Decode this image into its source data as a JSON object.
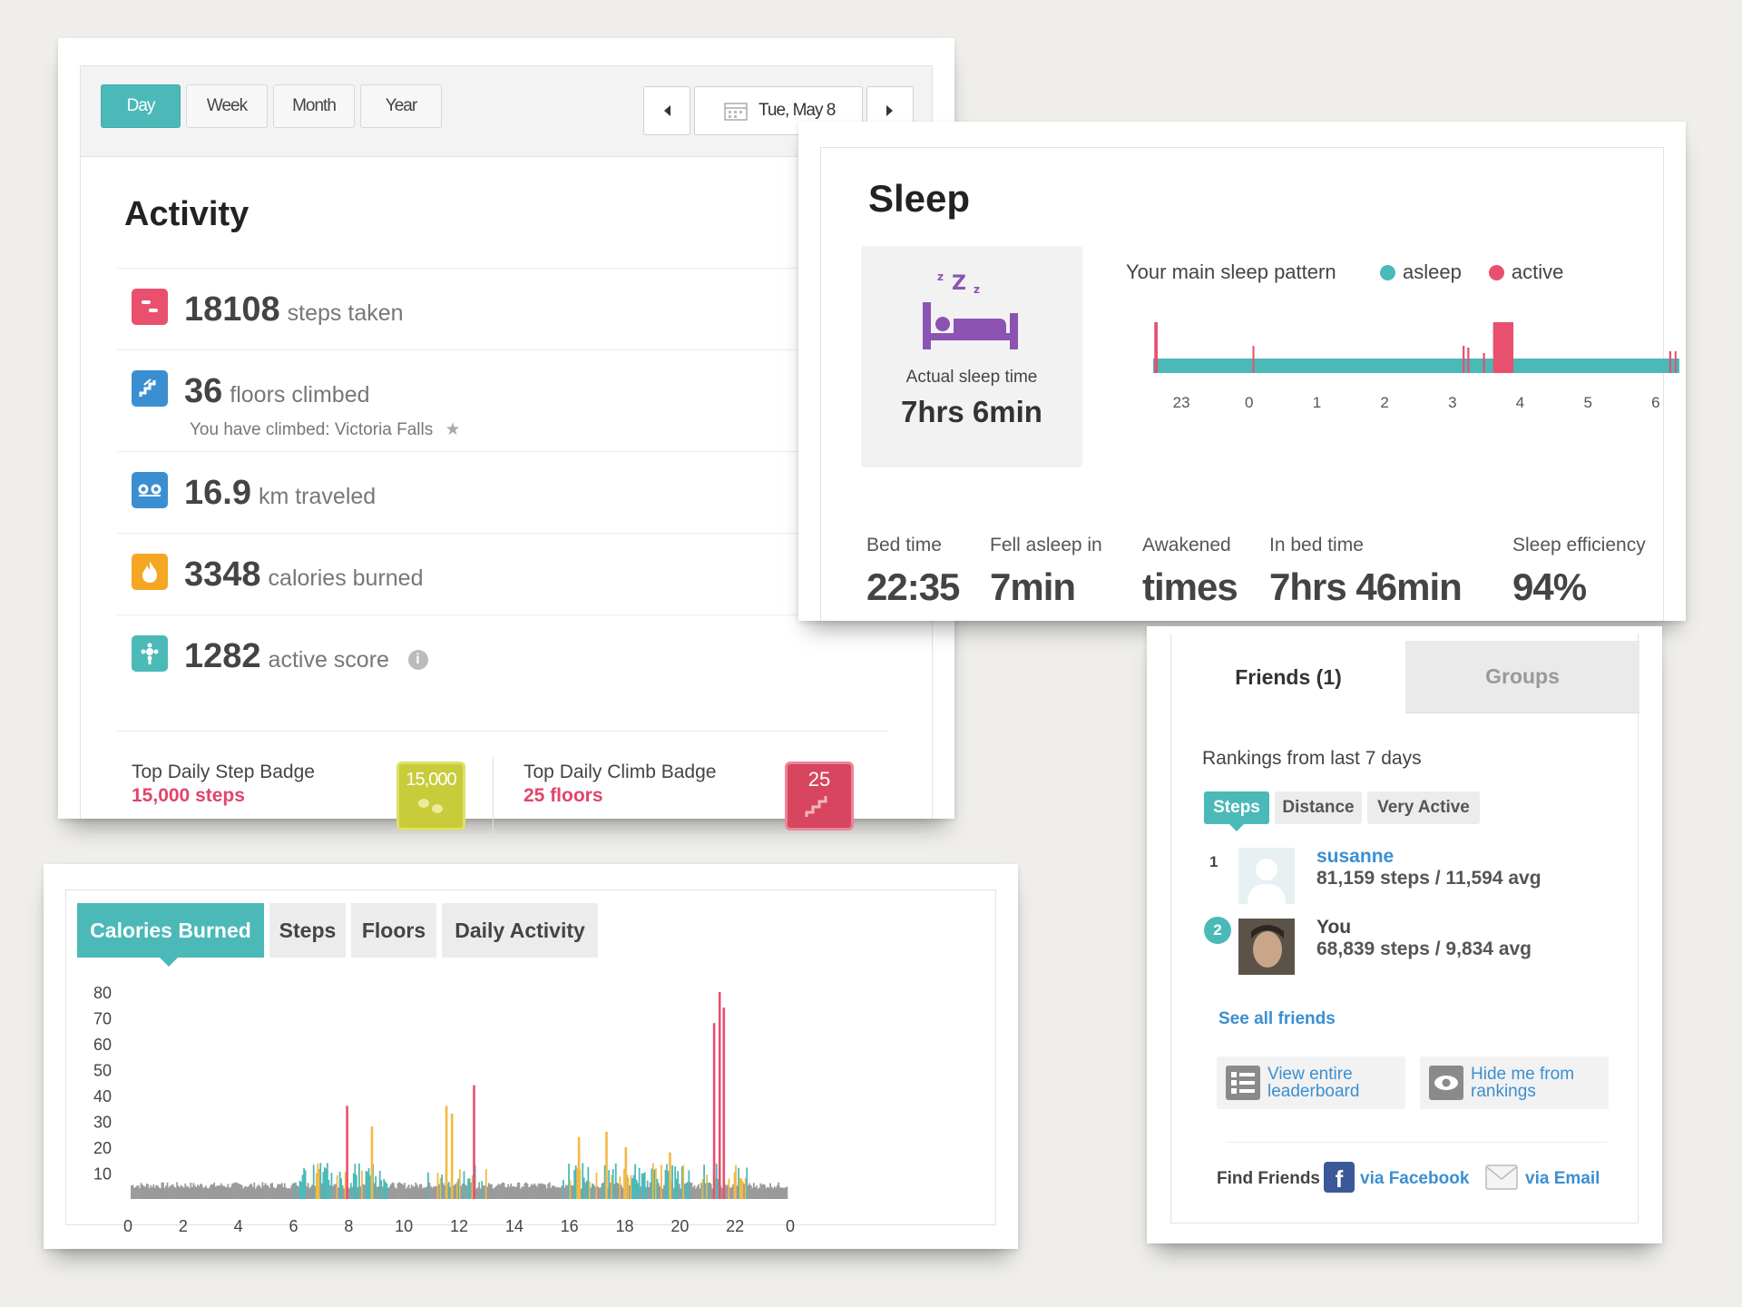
{
  "activity": {
    "periods": [
      "Day",
      "Week",
      "Month",
      "Year"
    ],
    "active_period": "Day",
    "date": "Tue, May 8",
    "title": "Activity",
    "rows": [
      {
        "value": "18108",
        "unit": "steps taken",
        "icon": "steps-icon",
        "color": "#e8506e"
      },
      {
        "value": "36",
        "unit": "floors climbed",
        "icon": "stairs-icon",
        "color": "#3b8fd1",
        "note": "You have climbed: Victoria Falls"
      },
      {
        "value": "16.9",
        "unit": "km traveled",
        "icon": "distance-icon",
        "color": "#3b8fd1"
      },
      {
        "value": "3348",
        "unit": "calories burned",
        "icon": "flame-icon",
        "color": "#f5a623"
      },
      {
        "value": "1282",
        "unit": "active score",
        "icon": "active-score-icon",
        "color": "#4bb9b8"
      }
    ],
    "badges": [
      {
        "label": "Top Daily Step Badge",
        "value": "15,000 steps",
        "badge_text": "15,000",
        "color": "#c8cc3a"
      },
      {
        "label": "Top Daily Climb Badge",
        "value": "25 floors",
        "badge_text": "25",
        "color": "#d8455e"
      }
    ]
  },
  "sleep": {
    "title": "Sleep",
    "actual_label": "Actual sleep time",
    "actual_value": "7hrs 6min",
    "pattern_label": "Your main sleep pattern",
    "legend": [
      {
        "name": "asleep",
        "color": "#4bb9b8"
      },
      {
        "name": "active",
        "color": "#e8506e"
      }
    ],
    "hour_ticks": [
      "23",
      "0",
      "1",
      "2",
      "3",
      "4",
      "5",
      "6"
    ],
    "stats": [
      {
        "label": "Bed time",
        "value": "22:35"
      },
      {
        "label": "Fell asleep in",
        "value": "7min"
      },
      {
        "label": "Awakened",
        "value": "times"
      },
      {
        "label": "In bed time",
        "value": "7hrs 46min"
      },
      {
        "label": "Sleep efficiency",
        "value": "94%"
      }
    ]
  },
  "chart": {
    "tabs": [
      "Calories Burned",
      "Steps",
      "Floors",
      "Daily Activity"
    ],
    "active_tab": "Calories Burned"
  },
  "chart_data": {
    "type": "bar",
    "x_ticks": [
      "0",
      "2",
      "4",
      "6",
      "8",
      "10",
      "12",
      "14",
      "16",
      "18",
      "20",
      "22",
      "0"
    ],
    "y_ticks": [
      "80",
      "70",
      "60",
      "50",
      "40",
      "30",
      "20",
      "10"
    ],
    "ylim": [
      0,
      80
    ],
    "xlim": [
      0,
      24
    ],
    "colors": {
      "sedentary": "#9a9a9a",
      "light": "#4bb9b8",
      "moderate": "#f5b942",
      "very_active": "#e8506e"
    },
    "peaks": [
      {
        "x": 7.9,
        "y": 36,
        "level": "very_active"
      },
      {
        "x": 8.8,
        "y": 28,
        "level": "moderate"
      },
      {
        "x": 11.5,
        "y": 36,
        "level": "moderate"
      },
      {
        "x": 11.7,
        "y": 33,
        "level": "moderate"
      },
      {
        "x": 12.5,
        "y": 44,
        "level": "very_active"
      },
      {
        "x": 16.3,
        "y": 24,
        "level": "moderate"
      },
      {
        "x": 17.3,
        "y": 26,
        "level": "moderate"
      },
      {
        "x": 18.0,
        "y": 20,
        "level": "moderate"
      },
      {
        "x": 19.6,
        "y": 18,
        "level": "moderate"
      },
      {
        "x": 21.2,
        "y": 68,
        "level": "very_active"
      },
      {
        "x": 21.4,
        "y": 80,
        "level": "very_active"
      },
      {
        "x": 21.55,
        "y": 74,
        "level": "very_active"
      }
    ]
  },
  "friends": {
    "tabs": [
      "Friends (1)",
      "Groups"
    ],
    "rankings_label": "Rankings from last 7 days",
    "rank_tabs": [
      "Steps",
      "Distance",
      "Very Active"
    ],
    "entries": [
      {
        "rank": "1",
        "name": "susanne",
        "stats": "81,159 steps / 11,594 avg"
      },
      {
        "rank": "2",
        "name": "You",
        "stats": "68,839 steps / 9,834 avg"
      }
    ],
    "see_all": "See all friends",
    "actions": [
      {
        "line1": "View entire",
        "line2": "leaderboard",
        "icon": "list-icon"
      },
      {
        "line1": "Hide me from",
        "line2": "rankings",
        "icon": "eye-icon"
      }
    ],
    "find_label": "Find Friends",
    "via_facebook": "via Facebook",
    "via_email": "via Email"
  }
}
